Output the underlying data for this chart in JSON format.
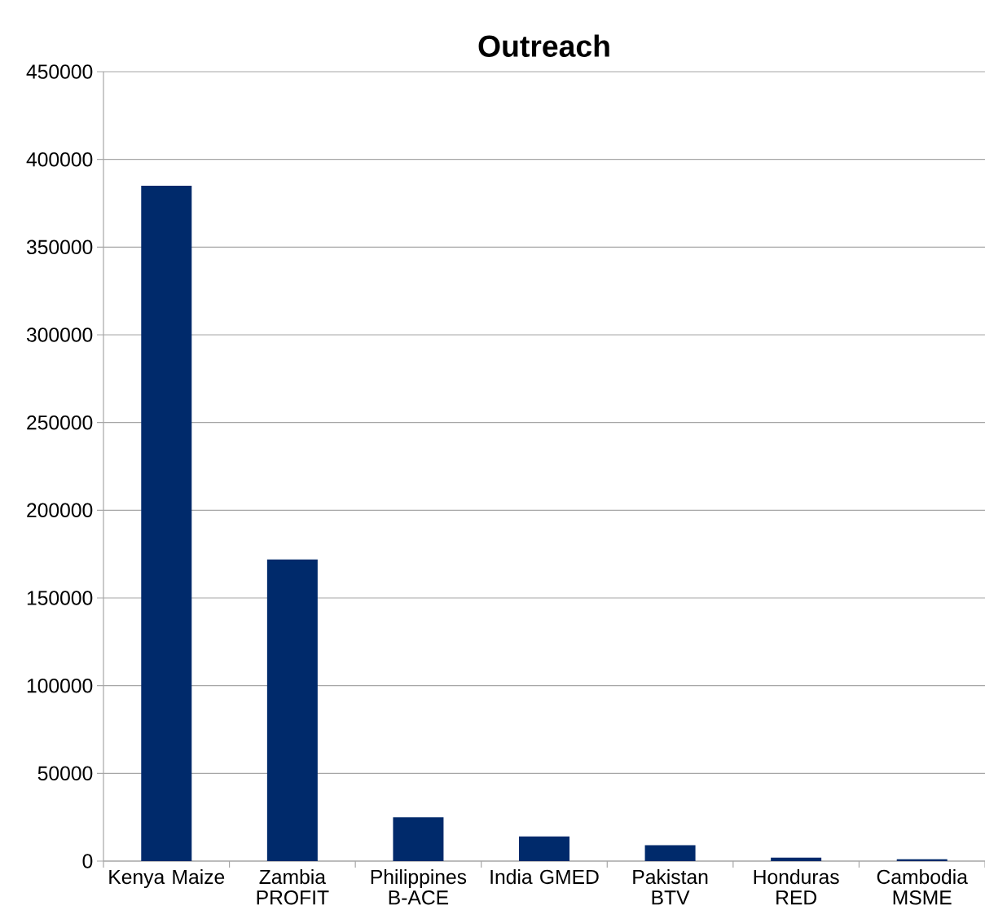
{
  "chart_data": {
    "type": "bar",
    "title": "Outreach",
    "categories": [
      "Kenya Maize",
      "Zambia PROFIT",
      "Philippines B-ACE",
      "India GMED",
      "Pakistan BTV",
      "Honduras RED",
      "Cambodia MSME"
    ],
    "values": [
      385000,
      172000,
      25000,
      14000,
      9000,
      2000,
      1000
    ],
    "color": "#002a6b",
    "ylim": [
      0,
      450000
    ],
    "yticks": [
      0,
      50000,
      100000,
      150000,
      200000,
      250000,
      300000,
      350000,
      400000,
      450000
    ],
    "grid": "y"
  }
}
